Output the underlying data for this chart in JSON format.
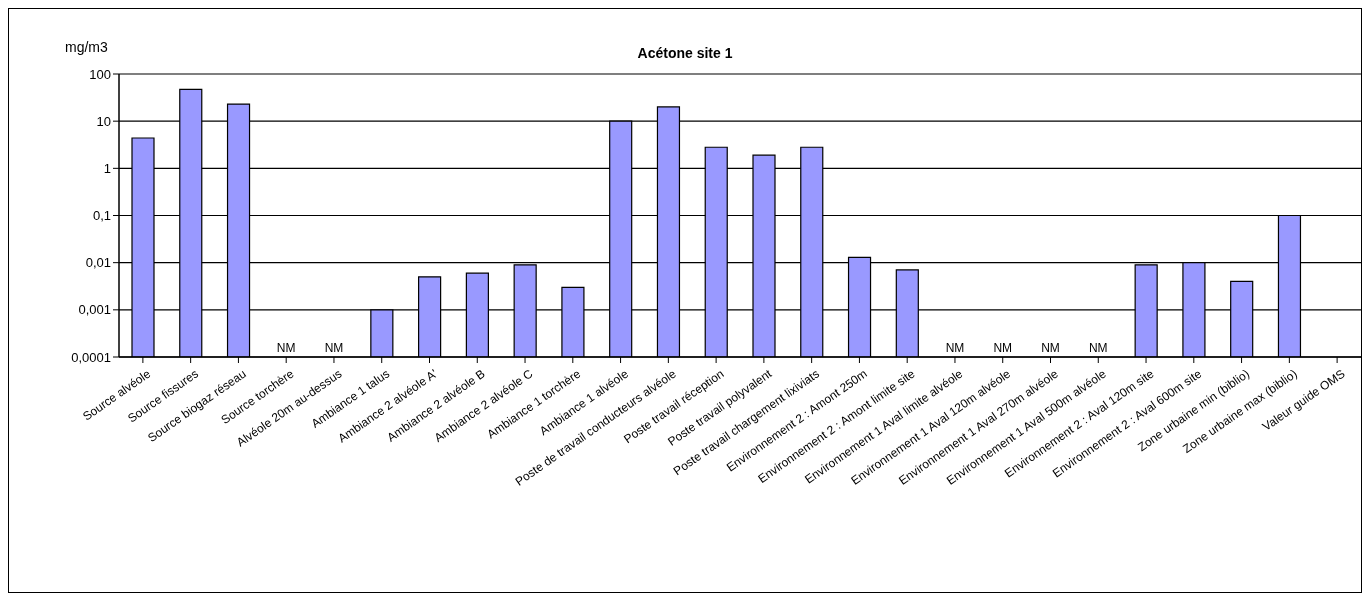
{
  "chart_data": {
    "type": "bar",
    "title": "Acétone site 1",
    "ylabel": "mg/m3",
    "categories": [
      "Source alvéole",
      "Source fissures",
      "Source biogaz réseau",
      "Source torchère",
      "Alvéole 20m au-dessus",
      "Ambiance 1 talus",
      "Ambiance 2 alvéole A'",
      "Ambiance 2 alvéole B",
      "Ambiance 2 alvéole C",
      "Ambiance 1 torchère",
      "Ambiance 1 alvéole",
      "Poste de travail conducteurs alvéole",
      "Poste travail réception",
      "Poste travail polyvalent",
      "Poste travail chargement lixiviats",
      "Environnement 2 : Amont 250m",
      "Environnement 2 : Amont limite site",
      "Environnement 1 Aval limite alvéole",
      "Environnement 1 Aval 120m alvéole",
      "Environnement 1 Aval 270m alvéole",
      "Environnement 1 Aval 500m alvéole",
      "Environnement 2 : Aval 120m site",
      "Environnement 2 : Aval 600m site",
      "Zone urbaine min (biblio)",
      "Zone urbaine max (biblio)",
      "Valeur guide OMS"
    ],
    "values": [
      4.4,
      47,
      23,
      null,
      null,
      0.001,
      0.005,
      0.006,
      0.009,
      0.003,
      10,
      20,
      2.8,
      1.9,
      2.8,
      0.013,
      0.007,
      null,
      null,
      null,
      null,
      0.009,
      0.01,
      0.004,
      0.1,
      null
    ],
    "color": "#9999ff",
    "log": true,
    "ylim": [
      0.0001,
      100
    ],
    "yticks": [
      {
        "value": 0.0001,
        "label": "0,0001"
      },
      {
        "value": 0.001,
        "label": "0,001"
      },
      {
        "value": 0.01,
        "label": "0,01"
      },
      {
        "value": 0.1,
        "label": "0,1"
      },
      1,
      10,
      100
    ],
    "value_labels": [
      null,
      null,
      null,
      "NM",
      "NM",
      null,
      null,
      null,
      null,
      null,
      null,
      null,
      null,
      null,
      null,
      null,
      null,
      "NM",
      "NM",
      "NM",
      "NM",
      null,
      null,
      null,
      null,
      null
    ],
    "grid": "y",
    "legend": false
  }
}
